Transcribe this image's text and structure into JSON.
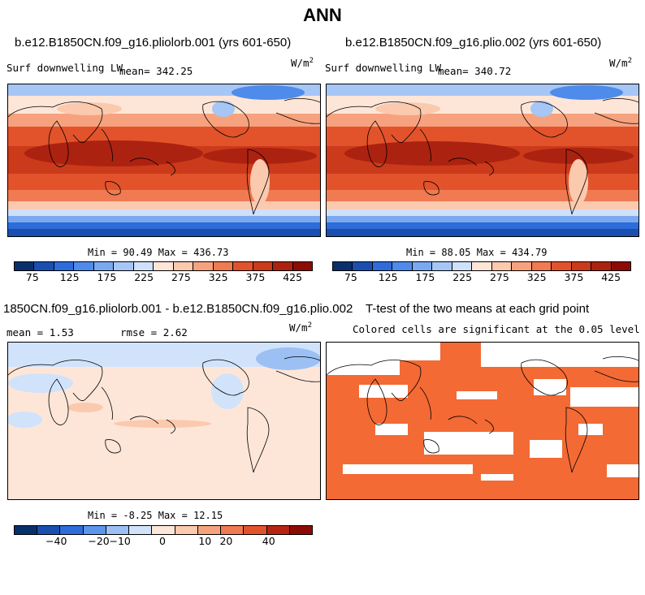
{
  "page_title": "ANN",
  "panel1": {
    "case_title": "b.e12.B1850CN.f09_g16.pliolorb.001 (yrs 601-650)",
    "variable": "Surf downwelling LW",
    "mean_label": "mean=",
    "mean_value": "342.25",
    "units": "W/m",
    "units_exp": "2",
    "min_label": "Min =",
    "min_value": "90.49",
    "max_label": "Max =",
    "max_value": "436.73"
  },
  "panel2": {
    "case_title": "b.e12.B1850CN.f09_g16.plio.002 (yrs 601-650)",
    "variable": "Surf downwelling LW",
    "mean_label": "mean=",
    "mean_value": "340.72",
    "units": "W/m",
    "units_exp": "2",
    "min_label": "Min =",
    "min_value": "88.05",
    "max_label": "Max =",
    "max_value": "434.79"
  },
  "panel3": {
    "case_title": "1850CN.f09_g16.pliolorb.001 - b.e12.B1850CN.f09_g16.plio.002",
    "mean_label": "mean =",
    "mean_value": "1.53",
    "rmse_label": "rmse =",
    "rmse_value": "2.62",
    "units": "W/m",
    "units_exp": "2",
    "min_label": "Min =",
    "min_value": "-8.25",
    "max_label": "Max =",
    "max_value": "12.15"
  },
  "panel4": {
    "title": "T-test of the two means at each grid point",
    "subtitle": "Colored cells are significant at the 0.05 level",
    "significant_color": "#F36A35"
  },
  "chart_data": [
    {
      "type": "heatmap",
      "title": "b.e12.B1850CN.f09_g16.pliolorb.001 (yrs 601-650)",
      "variable": "Surf downwelling LW",
      "mean": 342.25,
      "min": 90.49,
      "max": 436.73,
      "colorbar_levels": [
        75,
        100,
        125,
        150,
        175,
        200,
        225,
        250,
        275,
        300,
        325,
        350,
        375,
        400,
        425
      ],
      "colorbar_ticks": [
        "75",
        "125",
        "175",
        "225",
        "275",
        "325",
        "375",
        "425"
      ]
    },
    {
      "type": "heatmap",
      "title": "b.e12.B1850CN.f09_g16.plio.002 (yrs 601-650)",
      "variable": "Surf downwelling LW",
      "mean": 340.72,
      "min": 88.05,
      "max": 434.79,
      "colorbar_levels": [
        75,
        100,
        125,
        150,
        175,
        200,
        225,
        250,
        275,
        300,
        325,
        350,
        375,
        400,
        425
      ],
      "colorbar_ticks": [
        "75",
        "125",
        "175",
        "225",
        "275",
        "325",
        "375",
        "425"
      ]
    },
    {
      "type": "heatmap",
      "title": "1850CN.f09_g16.pliolorb.001 - b.e12.B1850CN.f09_g16.plio.002",
      "mean": 1.53,
      "rmse": 2.62,
      "min": -8.25,
      "max": 12.15,
      "colorbar_levels": [
        -50,
        -40,
        -30,
        -20,
        -10,
        -5,
        0,
        5,
        10,
        20,
        30,
        40,
        50
      ],
      "colorbar_ticks": [
        "−40",
        "−20",
        "−10",
        "0",
        "10",
        "20",
        "40"
      ]
    },
    {
      "type": "heatmap",
      "title": "T-test of the two means at each grid point",
      "subtitle": "Colored cells are significant at the 0.05 level"
    }
  ],
  "colors": {
    "fullfield": [
      "#08306B",
      "#1A4FB0",
      "#2E6CDB",
      "#4F8BEA",
      "#7BA9F0",
      "#A6C6F5",
      "#CFE0FA",
      "#FDE6D8",
      "#FBC9AE",
      "#F7A27E",
      "#F07A51",
      "#E2532C",
      "#CB3A1A",
      "#AC2210",
      "#8C0C05"
    ],
    "difference": [
      "#08306B",
      "#1A4FB0",
      "#2E6CDB",
      "#5C95EC",
      "#9CC0F4",
      "#D1E3FB",
      "#FDE6D8",
      "#FBC9AE",
      "#F7A27E",
      "#F07A51",
      "#E2532C",
      "#B72512",
      "#8C0C05"
    ]
  }
}
